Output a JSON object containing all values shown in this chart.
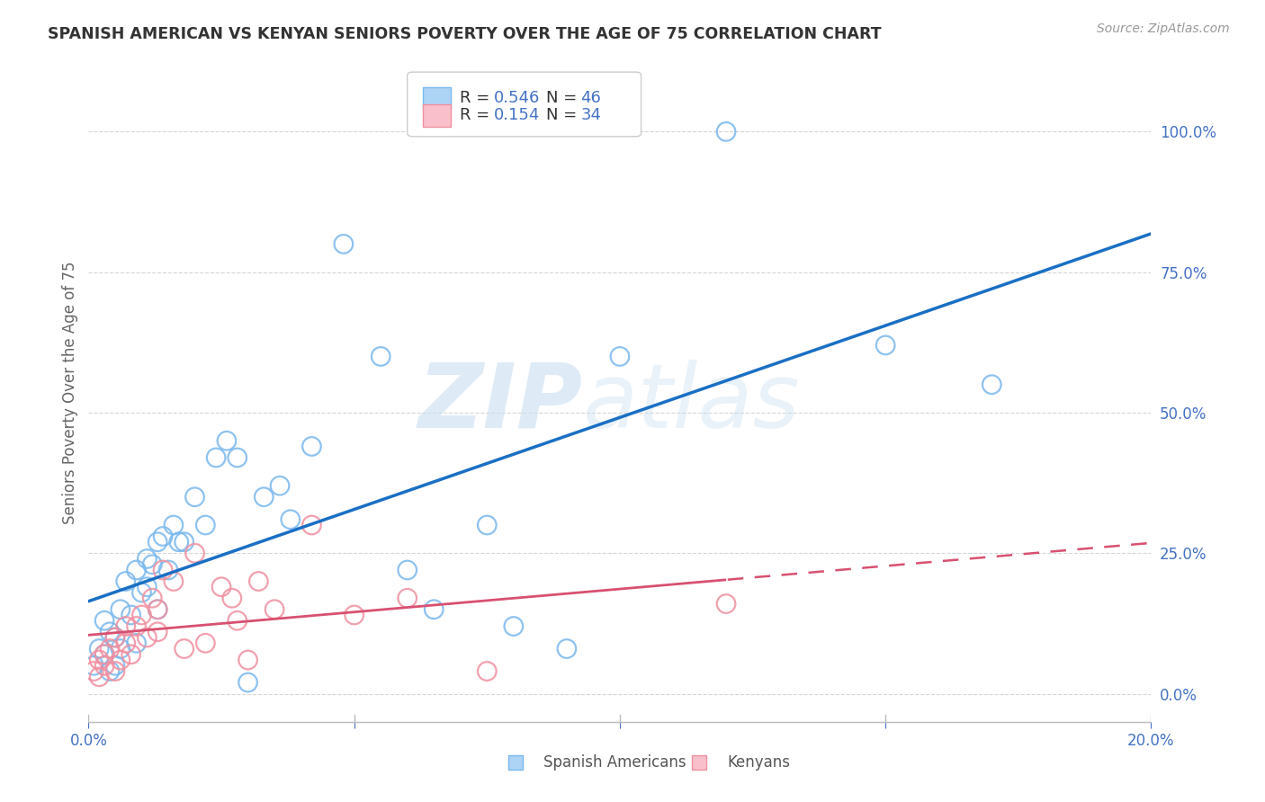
{
  "title": "SPANISH AMERICAN VS KENYAN SENIORS POVERTY OVER THE AGE OF 75 CORRELATION CHART",
  "source": "Source: ZipAtlas.com",
  "ylabel": "Seniors Poverty Over the Age of 75",
  "xlim": [
    0.0,
    0.2
  ],
  "ylim": [
    -0.05,
    1.12
  ],
  "yticks": [
    0.0,
    0.25,
    0.5,
    0.75,
    1.0
  ],
  "ytick_labels": [
    "0.0%",
    "25.0%",
    "50.0%",
    "75.0%",
    "100.0%"
  ],
  "xticks": [
    0.0,
    0.05,
    0.1,
    0.15,
    0.2
  ],
  "xtick_labels": [
    "0.0%",
    "",
    "",
    "",
    "20.0%"
  ],
  "legend_r1": "0.546",
  "legend_n1": "46",
  "legend_r2": "0.154",
  "legend_n2": "34",
  "blue_scatter_color": "#7ab8ee",
  "pink_scatter_color": "#f090a0",
  "blue_fill_color": "#aed4f5",
  "pink_fill_color": "#f9c0cc",
  "blue_line_color": "#1a6fc4",
  "pink_line_color": "#d85070",
  "label_color": "#4472c4",
  "text_color": "#333333",
  "watermark_color": "#c8dff0",
  "background_color": "#ffffff",
  "grid_color": "#cccccc",
  "blue_x": [
    0.001,
    0.002,
    0.003,
    0.003,
    0.004,
    0.004,
    0.005,
    0.005,
    0.006,
    0.006,
    0.007,
    0.008,
    0.009,
    0.009,
    0.01,
    0.011,
    0.011,
    0.012,
    0.013,
    0.013,
    0.014,
    0.015,
    0.016,
    0.017,
    0.018,
    0.02,
    0.022,
    0.024,
    0.026,
    0.028,
    0.03,
    0.033,
    0.036,
    0.038,
    0.042,
    0.048,
    0.055,
    0.06,
    0.065,
    0.075,
    0.08,
    0.09,
    0.1,
    0.12,
    0.15,
    0.17
  ],
  "blue_y": [
    0.05,
    0.08,
    0.07,
    0.13,
    0.04,
    0.11,
    0.05,
    0.1,
    0.15,
    0.08,
    0.2,
    0.14,
    0.22,
    0.09,
    0.18,
    0.24,
    0.19,
    0.23,
    0.27,
    0.15,
    0.28,
    0.22,
    0.3,
    0.27,
    0.27,
    0.35,
    0.3,
    0.42,
    0.45,
    0.42,
    0.02,
    0.35,
    0.37,
    0.31,
    0.44,
    0.8,
    0.6,
    0.22,
    0.15,
    0.3,
    0.12,
    0.08,
    0.6,
    1.0,
    0.62,
    0.55
  ],
  "pink_x": [
    0.001,
    0.002,
    0.002,
    0.003,
    0.003,
    0.004,
    0.005,
    0.005,
    0.006,
    0.007,
    0.007,
    0.008,
    0.009,
    0.01,
    0.011,
    0.012,
    0.013,
    0.013,
    0.014,
    0.016,
    0.018,
    0.02,
    0.022,
    0.025,
    0.027,
    0.028,
    0.03,
    0.032,
    0.035,
    0.042,
    0.05,
    0.06,
    0.075,
    0.12
  ],
  "pink_y": [
    0.04,
    0.06,
    0.03,
    0.07,
    0.05,
    0.08,
    0.04,
    0.1,
    0.06,
    0.12,
    0.09,
    0.07,
    0.12,
    0.14,
    0.1,
    0.17,
    0.11,
    0.15,
    0.22,
    0.2,
    0.08,
    0.25,
    0.09,
    0.19,
    0.17,
    0.13,
    0.06,
    0.2,
    0.15,
    0.3,
    0.14,
    0.17,
    0.04,
    0.16
  ]
}
